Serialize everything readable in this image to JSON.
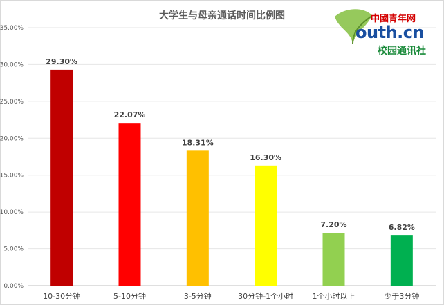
{
  "logo": {
    "top_text": "中國青年网",
    "main_text": "outh.cn",
    "sub_text": "校园通讯社"
  },
  "chart_data": {
    "type": "bar",
    "title": "大学生与母亲通话时间比例图",
    "xlabel": "",
    "ylabel": "",
    "ylim": [
      0,
      35
    ],
    "yticks": [
      "0.00%",
      "5.00%",
      "10.00%",
      "15.00%",
      "20.00%",
      "25.00%",
      "30.00%",
      "35.00%"
    ],
    "grid": true,
    "legend": "none",
    "categories": [
      "10-30分钟",
      "5-10分钟",
      "3-5分钟",
      "30分钟-1个小时",
      "1个小时以上",
      "少于3分钟"
    ],
    "values": [
      29.3,
      22.07,
      18.31,
      16.3,
      7.2,
      6.82
    ],
    "data_labels": [
      "29.30%",
      "22.07%",
      "18.31%",
      "16.30%",
      "7.20%",
      "6.82%"
    ],
    "colors": [
      "#c00000",
      "#ff0000",
      "#ffc000",
      "#ffff00",
      "#92d050",
      "#00b050"
    ]
  }
}
